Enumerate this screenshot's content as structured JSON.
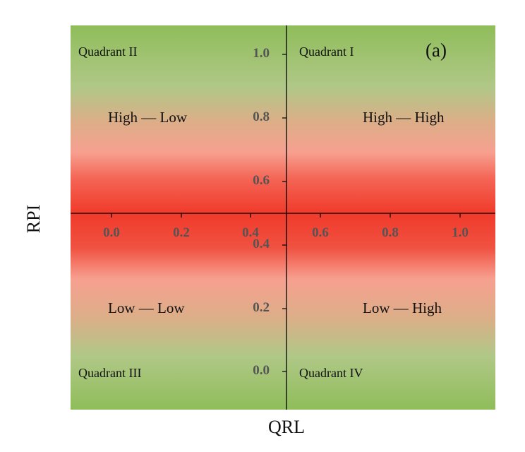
{
  "panel_label": "(a)",
  "quadrants": {
    "q1": "Quadrant I",
    "q2": "Quadrant II",
    "q3": "Quadrant III",
    "q4": "Quadrant IV"
  },
  "combos": {
    "high_low": "High — Low",
    "high_high": "High — High",
    "low_low": "Low — Low",
    "low_high": "Low — High"
  },
  "axes": {
    "x_title": "QRL",
    "y_title": "RPI",
    "x_ticks": [
      "0.0",
      "0.2",
      "0.4",
      "0.6",
      "0.8",
      "1.0"
    ],
    "y_ticks": [
      "1.0",
      "0.8",
      "0.6",
      "0.4",
      "0.2",
      "0.0"
    ]
  },
  "colors": {
    "green": "#8fbd5a",
    "light_green": "#b0c887",
    "pink": "#f7a090",
    "red": "#f03a2a",
    "axis": "#000000"
  }
}
